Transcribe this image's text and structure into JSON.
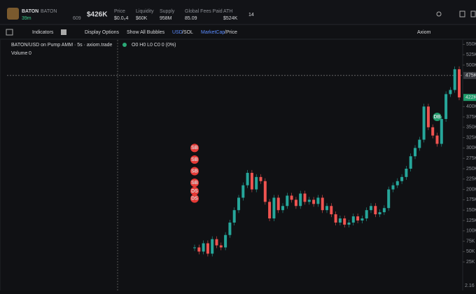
{
  "header": {
    "name": "BATON",
    "ticker": "BATON",
    "age": "39m",
    "holders": "609",
    "market_cap": "$426K",
    "stats": [
      {
        "label": "Price",
        "value": "$0.0₀4"
      },
      {
        "label": "Liquidity",
        "value": "$60K"
      },
      {
        "label": "Supply",
        "value": "958M"
      },
      {
        "label": "Global Fees Paid",
        "value": "85.09"
      },
      {
        "label": "ATH",
        "value": "$524K"
      }
    ],
    "badge": "14"
  },
  "toolbar": {
    "indicators": "Indicators",
    "display": "Display Options",
    "bubbles": "Show All Bubbles",
    "usd": "USD",
    "sol": "/SOL",
    "mcap": "MarketCap",
    "price": "/Price",
    "provider": "Axiom"
  },
  "chart": {
    "title": "BATON/USD on Pump AMM · 5s · axiom.trade",
    "ohlc": "O0 H0 L0 C0 0 (0%)",
    "volume_label": "Volume",
    "volume_value": "0",
    "yticks": [
      {
        "value": 550000,
        "label": "550K"
      },
      {
        "value": 525000,
        "label": "525K"
      },
      {
        "value": 500000,
        "label": "500K"
      },
      {
        "value": 400000,
        "label": "400K"
      },
      {
        "value": 375000,
        "label": "375K"
      },
      {
        "value": 350000,
        "label": "350K"
      },
      {
        "value": 325000,
        "label": "325K"
      },
      {
        "value": 300000,
        "label": "300K"
      },
      {
        "value": 275000,
        "label": "275K"
      },
      {
        "value": 250000,
        "label": "250K"
      },
      {
        "value": 225000,
        "label": "225K"
      },
      {
        "value": 200000,
        "label": "200K"
      },
      {
        "value": 175000,
        "label": "175K"
      },
      {
        "value": 150000,
        "label": "150K"
      },
      {
        "value": 125000,
        "label": "125K"
      },
      {
        "value": 100000,
        "label": "100K"
      },
      {
        "value": 75000,
        "label": "75K"
      },
      {
        "value": 50000,
        "label": "50K"
      },
      {
        "value": 25000,
        "label": "25K"
      }
    ],
    "crosshair": {
      "value": 475000,
      "label": "475K"
    },
    "current": {
      "value": 422000,
      "label": "422K"
    },
    "bottom_label": "2.16",
    "closes": [
      60000,
      50000,
      70000,
      45000,
      80000,
      65000,
      60000,
      90000,
      120000,
      150000,
      180000,
      210000,
      240000,
      200000,
      230000,
      220000,
      170000,
      130000,
      180000,
      150000,
      160000,
      185000,
      175000,
      160000,
      190000,
      170000,
      175000,
      165000,
      180000,
      150000,
      160000,
      140000,
      120000,
      130000,
      115000,
      120000,
      135000,
      125000,
      130000,
      150000,
      160000,
      140000,
      145000,
      155000,
      200000,
      210000,
      220000,
      230000,
      250000,
      280000,
      300000,
      320000,
      400000,
      350000,
      330000,
      310000,
      370000,
      430000,
      440000,
      490000,
      422000
    ],
    "bubbles": [
      {
        "label": "SB",
        "candle": 0,
        "value": 300000
      },
      {
        "label": "SB",
        "candle": 0,
        "value": 272000
      },
      {
        "label": "SB",
        "candle": 0,
        "value": 244000
      },
      {
        "label": "SB",
        "candle": 0,
        "value": 216000
      },
      {
        "label": "DS",
        "candle": 0,
        "value": 196000
      },
      {
        "label": "DS",
        "candle": 0,
        "value": 178000
      },
      {
        "label": "DB",
        "candle": 55,
        "value": 375000
      }
    ]
  }
}
